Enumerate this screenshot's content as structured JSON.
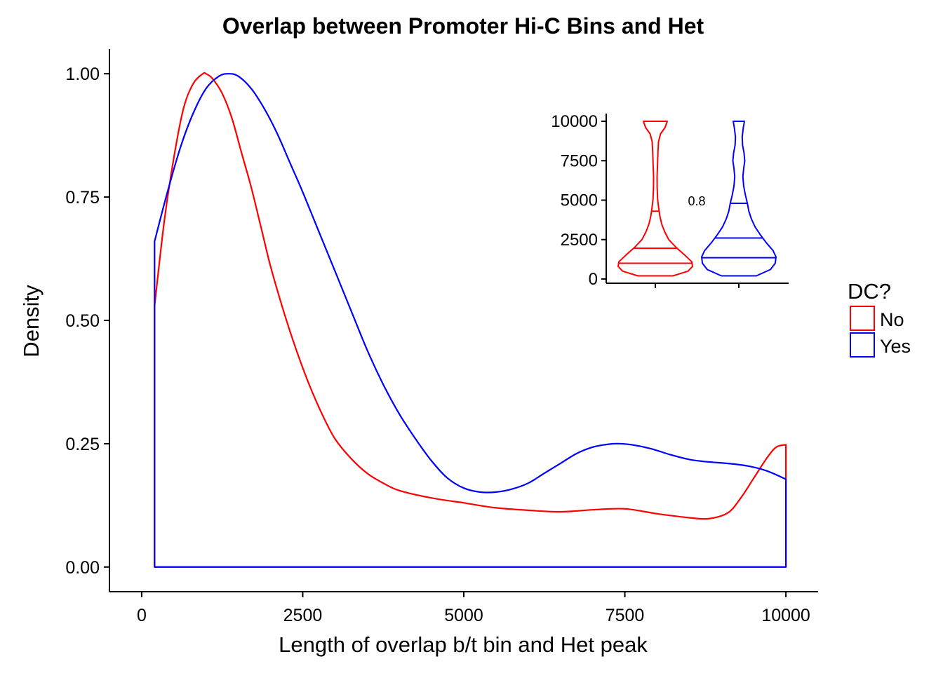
{
  "chart_data": {
    "type": "area",
    "title": "Overlap between Promoter Hi-C Bins and Het",
    "xlabel": "Length of overlap b/t bin and Het peak",
    "ylabel": "Density",
    "xlim": [
      -500,
      10500
    ],
    "ylim": [
      -0.05,
      1.05
    ],
    "x_ticks": [
      0,
      2500,
      5000,
      7500,
      10000
    ],
    "x_tick_labels": [
      "0",
      "2500",
      "5000",
      "7500",
      "10000"
    ],
    "y_ticks": [
      0,
      0.25,
      0.5,
      0.75,
      1
    ],
    "y_tick_labels": [
      "0.00",
      "0.25",
      "0.50",
      "0.75",
      "1.00"
    ],
    "grid": false,
    "legend": {
      "title": "DC?",
      "position": "right",
      "entries": [
        {
          "label": "No",
          "color": "#ff0000"
        },
        {
          "label": "Yes",
          "color": "#0000ff"
        }
      ]
    },
    "series": [
      {
        "name": "No",
        "color": "#ff0000",
        "x": [
          200,
          350,
          500,
          650,
          800,
          950,
          1000,
          1100,
          1250,
          1400,
          1550,
          1700,
          1850,
          2000,
          2200,
          2400,
          2600,
          2800,
          3000,
          3250,
          3500,
          3750,
          4000,
          4500,
          5000,
          5500,
          6000,
          6500,
          7000,
          7500,
          8000,
          8500,
          8800,
          9100,
          9300,
          9500,
          9700,
          9850,
          10000
        ],
        "y": [
          0.53,
          0.7,
          0.83,
          0.93,
          0.98,
          1.0,
          1.0,
          0.99,
          0.96,
          0.91,
          0.84,
          0.77,
          0.69,
          0.61,
          0.52,
          0.44,
          0.37,
          0.31,
          0.26,
          0.22,
          0.19,
          0.17,
          0.155,
          0.14,
          0.13,
          0.12,
          0.115,
          0.112,
          0.116,
          0.118,
          0.108,
          0.1,
          0.098,
          0.11,
          0.14,
          0.18,
          0.22,
          0.243,
          0.248
        ]
      },
      {
        "name": "Yes",
        "color": "#0000ff",
        "x": [
          200,
          400,
          600,
          800,
          1000,
          1200,
          1350,
          1500,
          1700,
          1900,
          2100,
          2300,
          2500,
          2750,
          3000,
          3250,
          3500,
          3750,
          4000,
          4250,
          4500,
          4750,
          5000,
          5250,
          5500,
          5750,
          6000,
          6250,
          6500,
          6750,
          7000,
          7250,
          7400,
          7600,
          7900,
          8200,
          8500,
          8800,
          9100,
          9400,
          9700,
          10000
        ],
        "y": [
          0.66,
          0.76,
          0.85,
          0.92,
          0.97,
          0.995,
          1.0,
          0.995,
          0.97,
          0.93,
          0.88,
          0.82,
          0.76,
          0.68,
          0.6,
          0.52,
          0.44,
          0.37,
          0.31,
          0.26,
          0.215,
          0.18,
          0.16,
          0.152,
          0.152,
          0.158,
          0.17,
          0.19,
          0.21,
          0.23,
          0.243,
          0.249,
          0.25,
          0.248,
          0.24,
          0.228,
          0.218,
          0.213,
          0.21,
          0.205,
          0.195,
          0.178
        ]
      }
    ],
    "inset": {
      "type": "violin",
      "y_ticks": [
        0,
        2500,
        5000,
        7500,
        10000
      ],
      "y_tick_labels": [
        "0",
        "2500",
        "5000",
        "7500",
        "10000"
      ],
      "ylim": [
        -300,
        10500
      ],
      "annotation": "0.8",
      "groups": [
        {
          "name": "No",
          "color": "#ff0000",
          "quantiles": [
            1000,
            1950,
            4300
          ],
          "profile": [
            {
              "y": 200,
              "w": 0.47
            },
            {
              "y": 500,
              "w": 0.88
            },
            {
              "y": 800,
              "w": 1.0
            },
            {
              "y": 1100,
              "w": 0.98
            },
            {
              "y": 1500,
              "w": 0.8
            },
            {
              "y": 2000,
              "w": 0.56
            },
            {
              "y": 2500,
              "w": 0.36
            },
            {
              "y": 3000,
              "w": 0.25
            },
            {
              "y": 3500,
              "w": 0.17
            },
            {
              "y": 4000,
              "w": 0.12
            },
            {
              "y": 4500,
              "w": 0.09
            },
            {
              "y": 5000,
              "w": 0.065
            },
            {
              "y": 5800,
              "w": 0.05
            },
            {
              "y": 6500,
              "w": 0.048
            },
            {
              "y": 7300,
              "w": 0.06
            },
            {
              "y": 8000,
              "w": 0.07
            },
            {
              "y": 8700,
              "w": 0.085
            },
            {
              "y": 9200,
              "w": 0.14
            },
            {
              "y": 9600,
              "w": 0.26
            },
            {
              "y": 10000,
              "w": 0.32
            }
          ]
        },
        {
          "name": "Yes",
          "color": "#0000ff",
          "quantiles": [
            1350,
            2600,
            4800
          ],
          "profile": [
            {
              "y": 200,
              "w": 0.47
            },
            {
              "y": 600,
              "w": 0.85
            },
            {
              "y": 1000,
              "w": 0.98
            },
            {
              "y": 1400,
              "w": 1.0
            },
            {
              "y": 1800,
              "w": 0.92
            },
            {
              "y": 2300,
              "w": 0.74
            },
            {
              "y": 2800,
              "w": 0.58
            },
            {
              "y": 3300,
              "w": 0.44
            },
            {
              "y": 3800,
              "w": 0.34
            },
            {
              "y": 4300,
              "w": 0.27
            },
            {
              "y": 4800,
              "w": 0.23
            },
            {
              "y": 5300,
              "w": 0.18
            },
            {
              "y": 5900,
              "w": 0.13
            },
            {
              "y": 6500,
              "w": 0.11
            },
            {
              "y": 7000,
              "w": 0.13
            },
            {
              "y": 7500,
              "w": 0.16
            },
            {
              "y": 8000,
              "w": 0.14
            },
            {
              "y": 8500,
              "w": 0.1
            },
            {
              "y": 9000,
              "w": 0.09
            },
            {
              "y": 9600,
              "w": 0.12
            },
            {
              "y": 10000,
              "w": 0.15
            }
          ]
        }
      ]
    }
  }
}
